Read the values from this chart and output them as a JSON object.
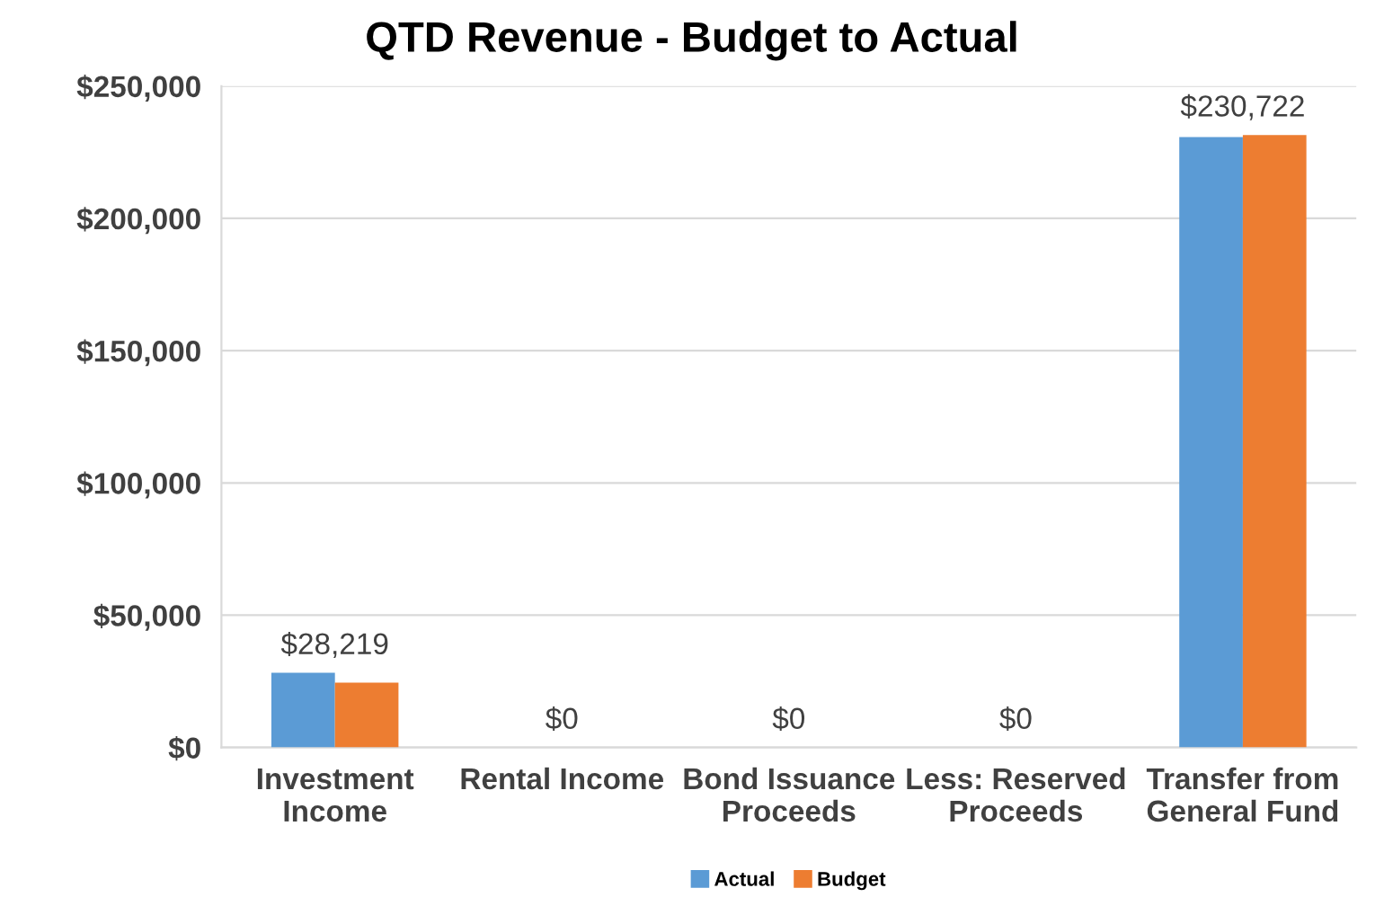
{
  "chart_data": {
    "type": "bar",
    "title": "QTD Revenue - Budget to Actual",
    "categories": [
      "Investment\nIncome",
      "Rental Income",
      "Bond Issuance\nProceeds",
      "Less: Reserved\nProceeds",
      "Transfer from\nGeneral Fund"
    ],
    "series": [
      {
        "name": "Actual",
        "color": "#5b9bd5",
        "values": [
          28219,
          0,
          0,
          0,
          230722
        ],
        "value_labels": [
          "$28,219",
          "$0",
          "$0",
          "$0",
          "$230,722"
        ]
      },
      {
        "name": "Budget",
        "color": "#ed7d31",
        "values": [
          24500,
          0,
          0,
          0,
          231500
        ]
      }
    ],
    "ylim": [
      0,
      250000
    ],
    "yticks": [
      {
        "value": 0,
        "label": "$0"
      },
      {
        "value": 50000,
        "label": "$50,000"
      },
      {
        "value": 100000,
        "label": "$100,000"
      },
      {
        "value": 150000,
        "label": "$150,000"
      },
      {
        "value": 200000,
        "label": "$200,000"
      },
      {
        "value": 250000,
        "label": "$250,000"
      }
    ],
    "grid": "y",
    "legend": "bottom"
  }
}
